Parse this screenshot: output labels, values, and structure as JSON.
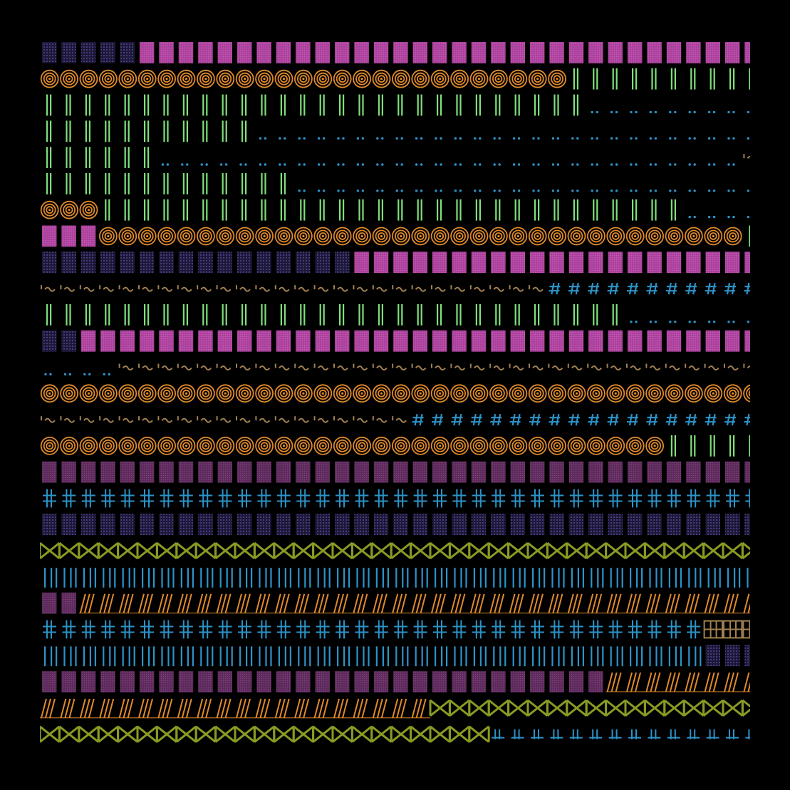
{
  "colors": {
    "background": "#000000",
    "orange": "#e08a2c",
    "green": "#7fe07a",
    "blue": "#2c93c8",
    "magenta": "#a8409a",
    "dark_magenta": "#5a2a5a",
    "purple_dots": "#5e4e9a",
    "olive": "#8a9a24",
    "tan": "#a08050"
  },
  "rows": [
    [
      [
        "dots-purple",
        5
      ],
      [
        "block-magenta",
        40
      ]
    ],
    [
      [
        "circle-orange",
        27
      ],
      [
        "bars-green",
        40
      ]
    ],
    [
      [
        "bars-green",
        28
      ],
      [
        "dot-pair",
        40
      ]
    ],
    [
      [
        "bars-green",
        11
      ],
      [
        "dot-pair",
        40
      ]
    ],
    [
      [
        "bars-green",
        6
      ],
      [
        "dot-pair",
        30
      ],
      [
        "tilde-tan",
        1
      ]
    ],
    [
      [
        "bars-green",
        13
      ],
      [
        "dot-pair",
        40
      ]
    ],
    [
      [
        "circle-orange",
        3
      ],
      [
        "bars-green",
        30
      ],
      [
        "dot-pair",
        40
      ]
    ],
    [
      [
        "block-magenta",
        3
      ],
      [
        "circle-orange",
        33
      ],
      [
        "bars-green",
        1
      ]
    ],
    [
      [
        "dots-purple",
        16
      ],
      [
        "block-magenta",
        40
      ]
    ],
    [
      [
        "tilde-tan",
        26
      ],
      [
        "hash-blue",
        40
      ]
    ],
    [
      [
        "bars-green",
        30
      ],
      [
        "dot-pair",
        40
      ]
    ],
    [
      [
        "dots-purple",
        2
      ],
      [
        "block-magenta",
        40
      ]
    ],
    [
      [
        "dot-pair",
        4
      ],
      [
        "tilde-tan",
        40
      ]
    ],
    [
      [
        "circle-orange",
        40
      ]
    ],
    [
      [
        "tilde-tan",
        19
      ],
      [
        "hash-blue",
        40
      ]
    ],
    [
      [
        "circle-orange",
        32
      ],
      [
        "bars-green",
        40
      ]
    ],
    [
      [
        "block-dark",
        40
      ]
    ],
    [
      [
        "cross-blue",
        40
      ]
    ],
    [
      [
        "dots-purple",
        40
      ]
    ],
    [
      [
        "zigzag-olive",
        40
      ]
    ],
    [
      [
        "blue-ticks",
        40
      ]
    ],
    [
      [
        "block-dark",
        2
      ],
      [
        "slash-orange",
        40
      ]
    ],
    [
      [
        "cross-blue",
        34
      ],
      [
        "grid-tan",
        40
      ]
    ],
    [
      [
        "blue-ticks",
        34
      ],
      [
        "dots-purple",
        40
      ]
    ],
    [
      [
        "block-dark",
        29
      ],
      [
        "slash-orange",
        40
      ]
    ],
    [
      [
        "slash-orange",
        20
      ],
      [
        "zigzag-olive",
        40
      ]
    ],
    [
      [
        "zigzag-olive",
        23
      ],
      [
        "blue-short",
        40
      ]
    ]
  ]
}
